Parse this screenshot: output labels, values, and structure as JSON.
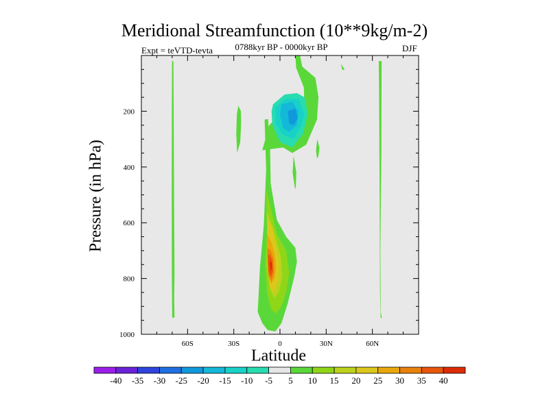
{
  "chart_data": {
    "type": "heatmap",
    "title": "Meridional Streamfunction (10**9kg/m-2)",
    "experiment_label": "Expt = teVTD-tevta",
    "period_label": "0788kyr BP - 0000kyr BP",
    "season_label": "DJF",
    "xlabel": "Latitude",
    "ylabel": "Pressure (in hPa)",
    "xlim": [
      -90,
      90
    ],
    "ylim": [
      1000,
      0
    ],
    "x_ticks": [
      {
        "value": -60,
        "label": "60S"
      },
      {
        "value": -30,
        "label": "30S"
      },
      {
        "value": 0,
        "label": "0"
      },
      {
        "value": 30,
        "label": "30N"
      },
      {
        "value": 60,
        "label": "60N"
      }
    ],
    "y_ticks": [
      {
        "value": 200,
        "label": "200"
      },
      {
        "value": 400,
        "label": "400"
      },
      {
        "value": 600,
        "label": "600"
      },
      {
        "value": 800,
        "label": "800"
      },
      {
        "value": 1000,
        "label": "1000"
      }
    ],
    "background_color": "#e8e8e8",
    "colorbar": {
      "labels": [
        "-40",
        "-35",
        "-30",
        "-25",
        "-20",
        "-15",
        "-10",
        "-5",
        "5",
        "10",
        "15",
        "20",
        "25",
        "30",
        "35",
        "40"
      ],
      "colors": [
        "#9b1fe8",
        "#6a22d8",
        "#2f44dc",
        "#1f6fe0",
        "#1098dc",
        "#14b8d8",
        "#18d2c8",
        "#28dcb0",
        "#e6e6e6",
        "#5ad83a",
        "#8fd618",
        "#bcd21c",
        "#dcc81c",
        "#e8a80c",
        "#e8820c",
        "#e8560c",
        "#dc2c06"
      ]
    },
    "regions": [
      {
        "level": 5,
        "points": [
          [
            -69.2,
            20
          ],
          [
            -69.0,
            200
          ],
          [
            -68.8,
            500
          ],
          [
            -68.5,
            780
          ],
          [
            -68.7,
            870
          ],
          [
            -68.5,
            940
          ],
          [
            -70,
            940
          ],
          [
            -70.2,
            780
          ],
          [
            -70.3,
            500
          ],
          [
            -70.2,
            200
          ],
          [
            -70.1,
            20
          ]
        ]
      },
      {
        "level": 5,
        "points": [
          [
            -27.8,
            350
          ],
          [
            -25.8,
            310
          ],
          [
            -25.2,
            240
          ],
          [
            -25.4,
            200
          ],
          [
            -27,
            180
          ],
          [
            -28,
            210
          ],
          [
            -28.4,
            280
          ]
        ]
      },
      {
        "level": 5,
        "points": [
          [
            -11.5,
            340
          ],
          [
            -7,
            250
          ],
          [
            -2.5,
            225
          ],
          [
            4,
            250
          ],
          [
            11,
            270
          ],
          [
            16,
            210
          ],
          [
            15.5,
            115
          ],
          [
            10.5,
            45
          ],
          [
            10,
            0
          ],
          [
            13,
            0
          ],
          [
            14.5,
            40
          ],
          [
            23,
            80
          ],
          [
            25,
            150
          ],
          [
            24,
            230
          ],
          [
            17,
            320
          ],
          [
            8,
            350
          ],
          [
            2,
            330
          ]
        ]
      },
      {
        "level": 5,
        "points": [
          [
            -10,
            230
          ],
          [
            -9,
            410
          ],
          [
            -10.5,
            610
          ],
          [
            -13,
            760
          ],
          [
            -14,
            870
          ],
          [
            -14.5,
            920
          ],
          [
            -11.5,
            960
          ],
          [
            -8,
            985
          ],
          [
            -3,
            990
          ],
          [
            1,
            960
          ],
          [
            5,
            890
          ],
          [
            9,
            800
          ],
          [
            11,
            740
          ],
          [
            10,
            690
          ],
          [
            4,
            650
          ],
          [
            -2,
            590
          ],
          [
            -6,
            460
          ],
          [
            -6.5,
            310
          ],
          [
            -7.8,
            228
          ]
        ]
      },
      {
        "level": 5,
        "points": [
          [
            8.8,
            360
          ],
          [
            10.6,
            420
          ],
          [
            10.2,
            480
          ],
          [
            9.5,
            470
          ],
          [
            8.2,
            420
          ]
        ]
      },
      {
        "level": 5,
        "points": [
          [
            24.2,
            300
          ],
          [
            25.6,
            330
          ],
          [
            25.0,
            360
          ],
          [
            24.0,
            370
          ],
          [
            23.4,
            340
          ]
        ]
      },
      {
        "level": 5,
        "points": [
          [
            39.5,
            30
          ],
          [
            42,
            50
          ],
          [
            40.5,
            52
          ]
        ]
      },
      {
        "level": 5,
        "points": [
          [
            66,
            20
          ],
          [
            65.8,
            350
          ],
          [
            65.2,
            700
          ],
          [
            65.4,
            920
          ],
          [
            66.1,
            940
          ],
          [
            65.3,
            942
          ],
          [
            64.9,
            840
          ],
          [
            64.7,
            500
          ],
          [
            64.3,
            100
          ],
          [
            64.1,
            20
          ]
        ]
      },
      {
        "level": 10,
        "points": [
          [
            -9.2,
            480
          ],
          [
            -8.2,
            600
          ],
          [
            -9.5,
            740
          ],
          [
            -8.5,
            850
          ],
          [
            -5.8,
            910
          ],
          [
            -2.5,
            925
          ],
          [
            1,
            900
          ],
          [
            4,
            850
          ],
          [
            6,
            780
          ],
          [
            4,
            700
          ],
          [
            -2,
            640
          ],
          [
            -5.5,
            560
          ]
        ]
      },
      {
        "level": 15,
        "points": [
          [
            -8.8,
            560
          ],
          [
            -8,
            650
          ],
          [
            -8.5,
            750
          ],
          [
            -6.5,
            840
          ],
          [
            -3.5,
            870
          ],
          [
            -0.5,
            845
          ],
          [
            1.5,
            790
          ],
          [
            0.5,
            720
          ],
          [
            -2.5,
            660
          ],
          [
            -5,
            610
          ]
        ]
      },
      {
        "level": 20,
        "points": [
          [
            -8.5,
            590
          ],
          [
            -8.2,
            680
          ],
          [
            -8.2,
            760
          ],
          [
            -6.5,
            830
          ],
          [
            -4,
            850
          ],
          [
            -1.5,
            810
          ],
          [
            -0.8,
            750
          ],
          [
            -2.5,
            690
          ],
          [
            -4.5,
            630
          ],
          [
            -6.5,
            600
          ]
        ]
      },
      {
        "level": 25,
        "points": [
          [
            -8.4,
            640
          ],
          [
            -8.2,
            700
          ],
          [
            -7.8,
            780
          ],
          [
            -6,
            820
          ],
          [
            -3.5,
            800
          ],
          [
            -2.5,
            760
          ],
          [
            -3.5,
            710
          ],
          [
            -5.5,
            670
          ]
        ]
      },
      {
        "level": 30,
        "points": [
          [
            -8.2,
            690
          ],
          [
            -8.1,
            740
          ],
          [
            -7.5,
            790
          ],
          [
            -5.5,
            810
          ],
          [
            -4,
            780
          ],
          [
            -4.2,
            730
          ],
          [
            -6,
            700
          ]
        ]
      },
      {
        "level": 35,
        "points": [
          [
            -7.8,
            715
          ],
          [
            -7.5,
            770
          ],
          [
            -6,
            795
          ],
          [
            -4.5,
            775
          ],
          [
            -5,
            735
          ],
          [
            -6.5,
            715
          ]
        ]
      },
      {
        "level": 40,
        "points": [
          [
            -6.8,
            740
          ],
          [
            -6,
            775
          ],
          [
            -5.1,
            760
          ],
          [
            -5.6,
            740
          ]
        ]
      },
      {
        "level": -5,
        "points": [
          [
            -4.5,
            175
          ],
          [
            3,
            140
          ],
          [
            11,
            135
          ],
          [
            16,
            150
          ],
          [
            18,
            210
          ],
          [
            15,
            280
          ],
          [
            8,
            330
          ],
          [
            0,
            310
          ],
          [
            -5,
            250
          ],
          [
            -5.5,
            200
          ]
        ]
      },
      {
        "level": -10,
        "points": [
          [
            -3,
            185
          ],
          [
            4,
            155
          ],
          [
            12,
            155
          ],
          [
            16,
            210
          ],
          [
            14,
            250
          ],
          [
            9,
            300
          ],
          [
            2,
            285
          ],
          [
            -3,
            240
          ]
        ]
      },
      {
        "level": -15,
        "points": [
          [
            1,
            175
          ],
          [
            8,
            165
          ],
          [
            12,
            200
          ],
          [
            11,
            250
          ],
          [
            6,
            275
          ],
          [
            2,
            260
          ],
          [
            0,
            210
          ]
        ]
      },
      {
        "level": -20,
        "points": [
          [
            5,
            200
          ],
          [
            10,
            190
          ],
          [
            11.5,
            225
          ],
          [
            9,
            250
          ],
          [
            6,
            245
          ]
        ]
      }
    ]
  }
}
